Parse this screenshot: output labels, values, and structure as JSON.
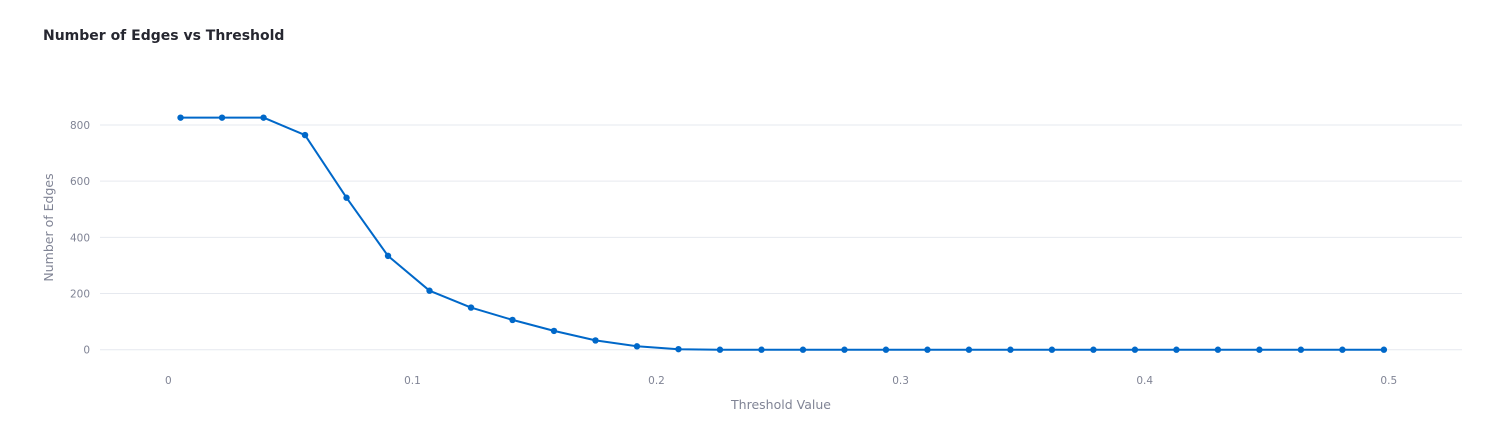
{
  "chart_data": {
    "type": "line",
    "title": "Number of Edges vs Threshold",
    "xlabel": "Threshold Value",
    "ylabel": "Number of Edges",
    "xlim": [
      -0.028,
      0.53
    ],
    "ylim": [
      -90,
      960
    ],
    "x_ticks": [
      0,
      0.1,
      0.2,
      0.3,
      0.4,
      0.5
    ],
    "x_tick_labels": [
      "0",
      "0.1",
      "0.2",
      "0.3",
      "0.4",
      "0.5"
    ],
    "y_ticks": [
      0,
      200,
      400,
      600,
      800
    ],
    "y_tick_labels": [
      "0",
      "200",
      "400",
      "600",
      "800"
    ],
    "grid": "horizontal",
    "legend": "none",
    "series": [
      {
        "color": "#0068c9",
        "x": [
          0.005,
          0.022,
          0.039,
          0.056,
          0.073,
          0.09,
          0.107,
          0.124,
          0.141,
          0.158,
          0.175,
          0.192,
          0.209,
          0.226,
          0.243,
          0.26,
          0.277,
          0.294,
          0.311,
          0.328,
          0.345,
          0.362,
          0.379,
          0.396,
          0.413,
          0.43,
          0.447,
          0.464,
          0.481,
          0.498
        ],
        "y": [
          826,
          826,
          826,
          764,
          541,
          334,
          210,
          150,
          106,
          67,
          33,
          12,
          2,
          0,
          0,
          0,
          0,
          0,
          0,
          0,
          0,
          0,
          0,
          0,
          0,
          0,
          0,
          0,
          0,
          0
        ]
      }
    ]
  }
}
